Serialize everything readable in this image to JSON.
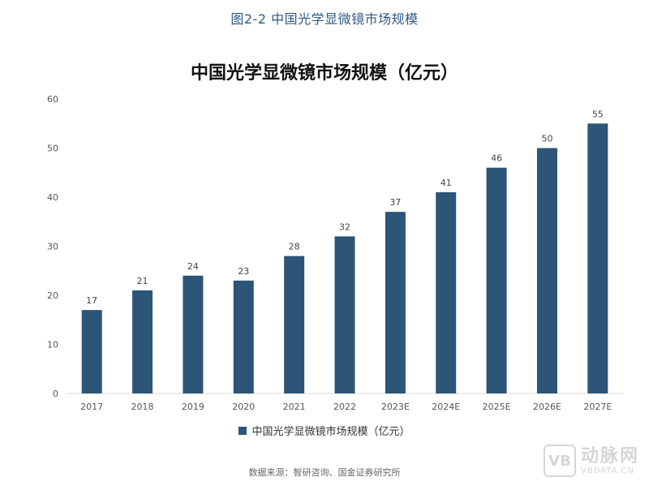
{
  "figure_caption": "图2-2 中国光学显微镜市场规模",
  "source_note": "数据来源：智研咨询、国金证券研究所",
  "watermark": {
    "logo": "VB",
    "name": "动脉网",
    "url": "VBDATA.CN"
  },
  "colors": {
    "bar": "#2c5578",
    "caption": "#2d5a86"
  },
  "chart_data": {
    "type": "bar",
    "title": "中国光学显微镜市场规模（亿元）",
    "categories": [
      "2017",
      "2018",
      "2019",
      "2020",
      "2021",
      "2022",
      "2023E",
      "2024E",
      "2025E",
      "2026E",
      "2027E"
    ],
    "series": [
      {
        "name": "中国光学显微镜市场规模（亿元）",
        "values": [
          17,
          21,
          24,
          23,
          28,
          32,
          37,
          41,
          46,
          50,
          55
        ]
      }
    ],
    "ylim": [
      0,
      60
    ],
    "yticks": [
      0,
      10,
      20,
      30,
      40,
      50,
      60
    ],
    "xlabel": "",
    "ylabel": "",
    "grid": false,
    "legend_position": "bottom",
    "data_labels": true
  }
}
